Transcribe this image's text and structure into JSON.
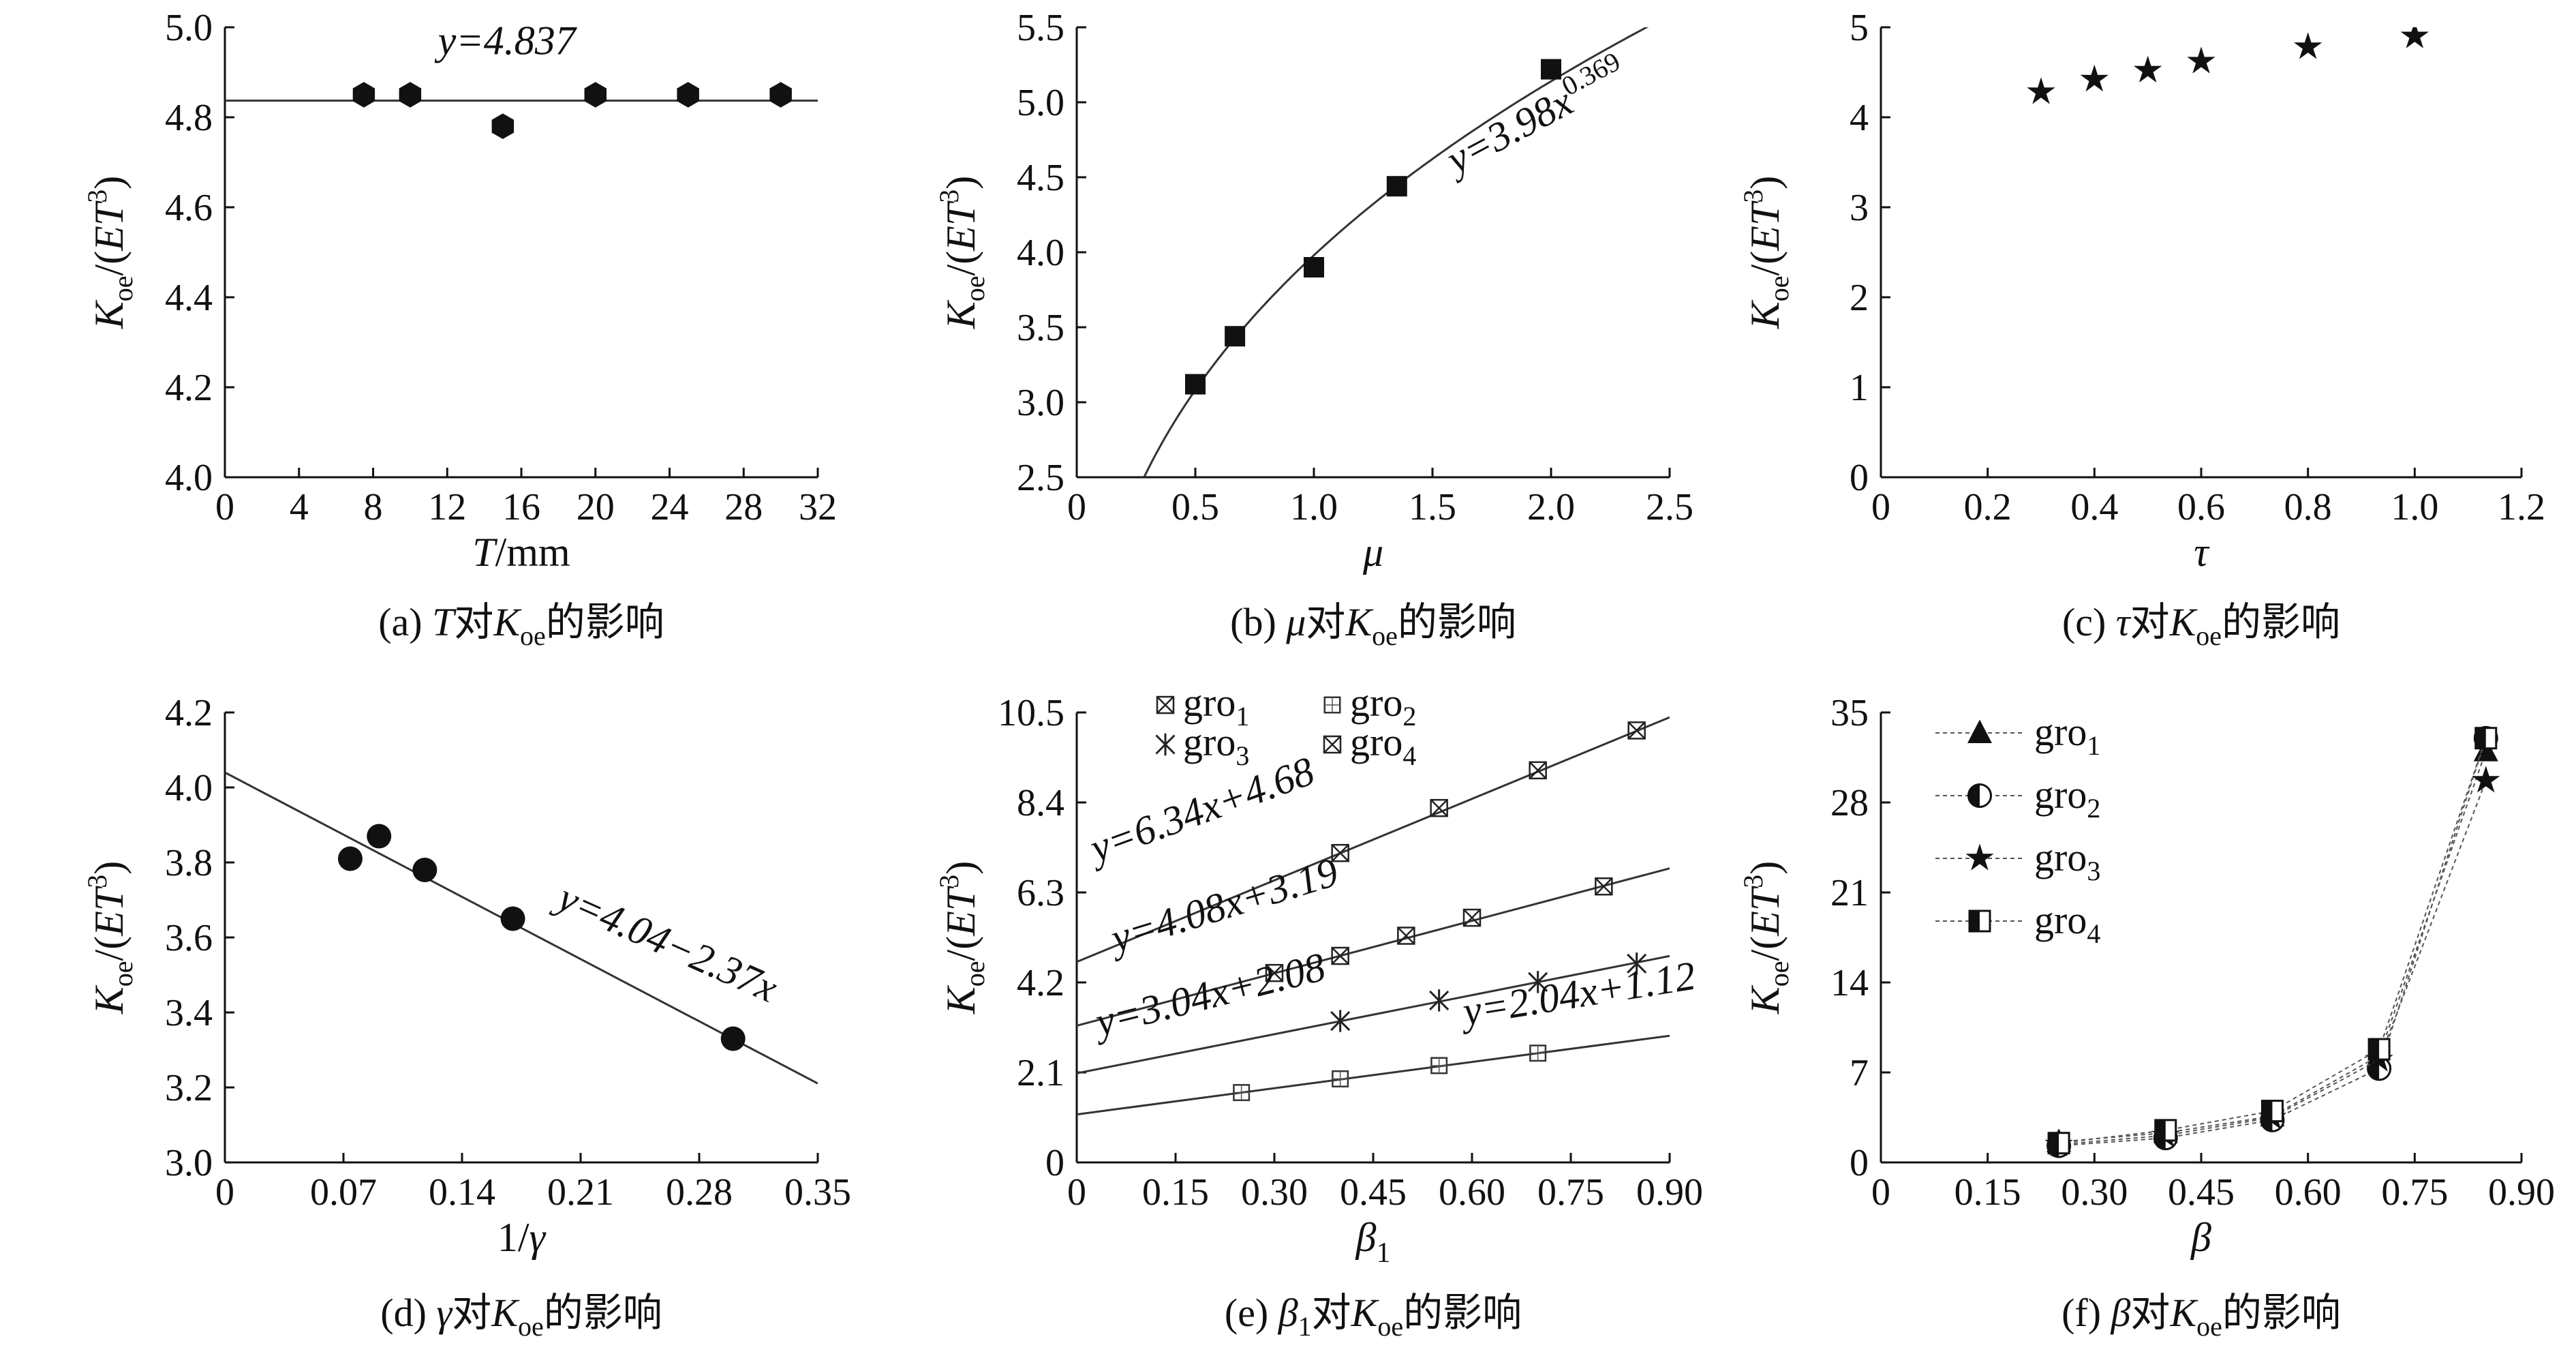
{
  "figure": {
    "panels": [
      {
        "caption_prefix": "(a) ",
        "caption_var": "T",
        "caption_mid": "对",
        "caption_K": "K",
        "caption_sub": "oe",
        "caption_end": "的影响"
      },
      {
        "caption_prefix": "(b) ",
        "caption_var": "μ",
        "caption_mid": "对",
        "caption_K": "K",
        "caption_sub": "oe",
        "caption_end": "的影响"
      },
      {
        "caption_prefix": "(c) ",
        "caption_var": "τ",
        "caption_mid": "对",
        "caption_K": "K",
        "caption_sub": "oe",
        "caption_end": "的影响"
      },
      {
        "caption_prefix": "(d) ",
        "caption_var": "γ",
        "caption_mid": "对",
        "caption_K": "K",
        "caption_sub": "oe",
        "caption_end": "的影响"
      },
      {
        "caption_prefix": "(e) ",
        "caption_var": "β",
        "caption_varsub": "1",
        "caption_mid": "对",
        "caption_K": "K",
        "caption_sub": "oe",
        "caption_end": "的影响"
      },
      {
        "caption_prefix": "(f) ",
        "caption_var": "β",
        "caption_mid": "对",
        "caption_K": "K",
        "caption_sub": "oe",
        "caption_end": "的影响"
      }
    ]
  },
  "chart_data": [
    {
      "type": "scatter",
      "ylabel": "K_oe/(ET^3)",
      "xlabel": "T/mm",
      "xlim": [
        0,
        32
      ],
      "ylim": [
        4.0,
        5.0
      ],
      "xticks": [
        "0",
        "4",
        "8",
        "12",
        "16",
        "20",
        "24",
        "28",
        "32"
      ],
      "yticks": [
        "4.0",
        "4.2",
        "4.4",
        "4.6",
        "4.8",
        "5.0"
      ],
      "marker": "hexagon",
      "x": [
        7.5,
        10,
        15,
        20,
        25,
        30
      ],
      "y": [
        4.85,
        4.85,
        4.78,
        4.85,
        4.85,
        4.85
      ],
      "fit": {
        "kind": "constant",
        "value": 4.837,
        "label": "y=4.837"
      }
    },
    {
      "type": "scatter",
      "ylabel": "K_oe/(ET^3)",
      "xlabel": "μ",
      "xlim": [
        0,
        2.5
      ],
      "ylim": [
        2.5,
        5.5
      ],
      "xticks": [
        "0",
        "0.5",
        "1.0",
        "1.5",
        "2.0",
        "2.5"
      ],
      "yticks": [
        "2.5",
        "3.0",
        "3.5",
        "4.0",
        "4.5",
        "5.0",
        "5.5"
      ],
      "marker": "square",
      "x": [
        0.5,
        0.667,
        1.0,
        1.35,
        2.0
      ],
      "y": [
        3.12,
        3.44,
        3.9,
        4.44,
        5.22
      ],
      "fit": {
        "kind": "power",
        "a": 3.98,
        "b": 0.369,
        "label": "y=3.98x^0.369"
      }
    },
    {
      "type": "scatter",
      "ylabel": "K_oe/(ET^3)",
      "xlabel": "τ",
      "xlim": [
        0,
        1.2
      ],
      "ylim": [
        0,
        5
      ],
      "xticks": [
        "0",
        "0.2",
        "0.4",
        "0.6",
        "0.8",
        "1.0",
        "1.2"
      ],
      "yticks": [
        "0",
        "1",
        "2",
        "3",
        "4",
        "5"
      ],
      "marker": "star",
      "x": [
        0.3,
        0.4,
        0.5,
        0.6,
        0.8,
        1.0
      ],
      "y": [
        4.28,
        4.42,
        4.52,
        4.62,
        4.78,
        4.9
      ]
    },
    {
      "type": "scatter",
      "ylabel": "K_oe/(ET^3)",
      "xlabel": "1/γ",
      "xlim": [
        0,
        0.35
      ],
      "ylim": [
        3.0,
        4.2
      ],
      "xticks": [
        "0",
        "0.07",
        "0.14",
        "0.21",
        "0.28",
        "0.35"
      ],
      "yticks": [
        "3.0",
        "3.2",
        "3.4",
        "3.6",
        "3.8",
        "4.0",
        "4.2"
      ],
      "marker": "circle",
      "x": [
        0.074,
        0.091,
        0.118,
        0.17,
        0.3
      ],
      "y": [
        3.81,
        3.87,
        3.78,
        3.65,
        3.33
      ],
      "fit": {
        "kind": "linear",
        "a": 4.04,
        "b": -2.37,
        "label": "y=4.04−2.37x"
      }
    },
    {
      "type": "line",
      "ylabel": "K_oe/(ET^3)",
      "xlabel": "β1",
      "xlim": [
        0,
        0.9
      ],
      "ylim": [
        0,
        10.5
      ],
      "xticks": [
        "0",
        "0.15",
        "0.30",
        "0.45",
        "0.60",
        "0.75",
        "0.90"
      ],
      "yticks": [
        "2.1",
        "4.2",
        "6.3",
        "8.4",
        "10.5"
      ],
      "legend": [
        "gro1",
        "gro2",
        "gro3",
        "gro4"
      ],
      "series": [
        {
          "name": "gro1",
          "marker": "xbox",
          "x": [
            0.3,
            0.4,
            0.5,
            0.6,
            0.8
          ],
          "y": [
            4.42,
            4.82,
            5.29,
            5.71,
            6.44
          ],
          "fit": {
            "a": 3.19,
            "b": 4.08,
            "label": "y=4.08x+3.19"
          }
        },
        {
          "name": "gro2",
          "marker": "dotbox",
          "x": [
            0.25,
            0.4,
            0.55,
            0.7
          ],
          "y": [
            1.63,
            1.95,
            2.26,
            2.55
          ],
          "fit": {
            "a": 1.12,
            "b": 2.04,
            "label": "y=2.04x+1.12"
          }
        },
        {
          "name": "gro3",
          "marker": "asterisk",
          "x": [
            0.4,
            0.55,
            0.7,
            0.85
          ],
          "y": [
            3.3,
            3.78,
            4.21,
            4.64
          ],
          "fit": {
            "a": 2.08,
            "b": 3.04,
            "label": "y=3.04x+2.08"
          }
        },
        {
          "name": "gro4",
          "marker": "xbox",
          "x": [
            0.4,
            0.55,
            0.7,
            0.85
          ],
          "y": [
            7.22,
            8.27,
            9.15,
            10.08
          ],
          "fit": {
            "a": 4.68,
            "b": 6.34,
            "label": "y=6.34x+4.68"
          }
        }
      ]
    },
    {
      "type": "line",
      "ylabel": "K_oe/(ET^3)",
      "xlabel": "β",
      "xlim": [
        0,
        0.9
      ],
      "ylim": [
        0,
        35
      ],
      "xticks": [
        "0",
        "0.15",
        "0.30",
        "0.45",
        "0.60",
        "0.75",
        "0.90"
      ],
      "yticks": [
        "7",
        "14",
        "21",
        "28",
        "35"
      ],
      "legend": [
        "gro1",
        "gro2",
        "gro3",
        "gro4"
      ],
      "series": [
        {
          "name": "gro1",
          "marker": "triangle",
          "x": [
            0.25,
            0.4,
            0.55,
            0.7,
            0.85
          ],
          "y": [
            1.6,
            2.3,
            3.6,
            8.3,
            32.0
          ]
        },
        {
          "name": "gro2",
          "marker": "halfcircle",
          "x": [
            0.25,
            0.4,
            0.55,
            0.7,
            0.85
          ],
          "y": [
            1.3,
            1.9,
            3.3,
            7.3,
            33.0
          ]
        },
        {
          "name": "gro3",
          "marker": "star",
          "x": [
            0.25,
            0.4,
            0.55,
            0.7,
            0.85
          ],
          "y": [
            1.4,
            2.1,
            3.5,
            8.0,
            29.7
          ]
        },
        {
          "name": "gro4",
          "marker": "halfsquare",
          "x": [
            0.25,
            0.4,
            0.55,
            0.7,
            0.85
          ],
          "y": [
            1.5,
            2.5,
            4.0,
            8.8,
            33.0
          ]
        }
      ]
    }
  ]
}
